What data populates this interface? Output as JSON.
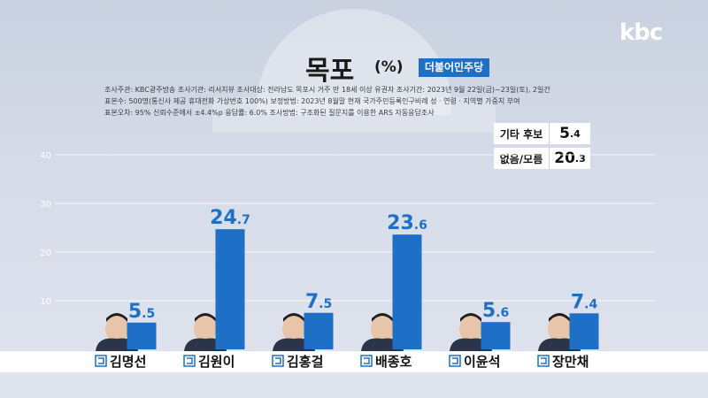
{
  "logo": "kbc",
  "header": {
    "title": "목포",
    "unit": "(%)",
    "party": "더불어민주당"
  },
  "notes": [
    "조사주관: KBC광주방송    조사기관: 리서치뷰    조사대상: 전라남도 목포시 거주 만 18세 이상 유권자    조사기간: 2023년 9월 22일(금)~23일(토), 2일간",
    "표본수: 500명(통신사 제공 휴대전화 가상번호 100%)    보정방법: 2023년 8월말 현재 국가주민등록인구비례 성 · 연령 · 지역별 가중치 부여",
    "표본오차: 95% 신뢰수준에서 ±4.4%p    응답률: 6.0%    조사방법: 구조화된 질문지를 이용한 ARS 자동응답조사"
  ],
  "extras": [
    {
      "label": "기타 후보",
      "int": "5",
      "dec": ".4"
    },
    {
      "label": "없음/모름",
      "int": "20",
      "dec": ".3"
    }
  ],
  "colors": {
    "bar": "#1e6fc6",
    "value_text": "#1e6fc6",
    "party_badge": "#1e6fc6",
    "gridline": "#ffffff",
    "tick_text": "#ffffff"
  },
  "chart_data": {
    "type": "bar",
    "categories": [
      "김명선",
      "김원이",
      "김홍걸",
      "배종호",
      "이윤석",
      "장만채"
    ],
    "values": [
      5.5,
      24.7,
      7.5,
      23.6,
      5.6,
      7.4
    ],
    "value_labels": [
      {
        "int": "5",
        "dec": ".5"
      },
      {
        "int": "24",
        "dec": ".7"
      },
      {
        "int": "7",
        "dec": ".5"
      },
      {
        "int": "23",
        "dec": ".6"
      },
      {
        "int": "5",
        "dec": ".6"
      },
      {
        "int": "7",
        "dec": ".4"
      }
    ],
    "yticks": [
      10,
      20,
      30,
      40
    ],
    "ylim": [
      0,
      40
    ],
    "grid": true,
    "title": "목포",
    "ylabel": "(%)"
  }
}
